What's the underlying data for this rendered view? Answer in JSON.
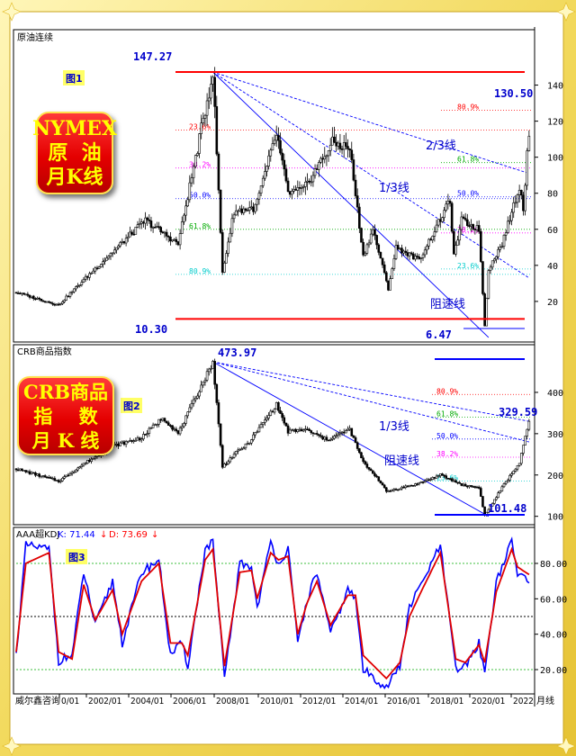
{
  "panels": {
    "top": {
      "title": "原油连续",
      "badge_lines": [
        "NYMEX",
        "原  油",
        "月K线"
      ],
      "figure_label": "图1",
      "annotations": {
        "peak": "147.27",
        "high_recent": "130.50",
        "low_left": "10.30",
        "low_recent": "6.47",
        "two_thirds": "2/3线",
        "one_third": "1/3线",
        "speed_line": "阻速线"
      },
      "fib_left": [
        "23.6%",
        "38.2%",
        "50.0%",
        "61.8%",
        "80.9%"
      ],
      "fib_right": [
        "80.9%",
        "61.8%",
        "50.0%",
        "38.2%",
        "23.6%"
      ],
      "y_ticks": [
        "140",
        "120",
        "100",
        "80",
        "60",
        "40",
        "20"
      ]
    },
    "middle": {
      "title": "CRB商品指数",
      "badge_lines": [
        "CRB商品",
        "指    数",
        "月 K 线"
      ],
      "figure_label": "图2",
      "annotations": {
        "peak": "473.97",
        "high_recent": "329.59",
        "low_recent": "101.48",
        "one_third": "1/3线",
        "speed_line": "阻速线"
      },
      "fib_right": [
        "80.9%",
        "61.8%",
        "50.0%",
        "38.2%",
        "23.6%"
      ],
      "y_ticks": [
        "400",
        "300",
        "200",
        "100"
      ]
    },
    "bottom": {
      "title": "AAA超KDJ",
      "k_label": "K: 71.44",
      "d_label": "D: 73.69",
      "figure_label": "图3",
      "y_ticks": [
        "80.00",
        "60.00",
        "40.00",
        "20.00"
      ]
    }
  },
  "x_axis": {
    "labels": [
      "0/01",
      "2002/01",
      "2004/01",
      "2006/01",
      "2008/01",
      "2010/01",
      "2012/01",
      "2014/01",
      "2016/01",
      "2018/01",
      "2020/01",
      "2022"
    ],
    "source": "威尔鑫咨询",
    "unit": "月线"
  },
  "colors": {
    "frame": "#f2d95c",
    "badge": "#e40000",
    "badge_text": "#ffff00",
    "label_blue": "#0000cc",
    "k_line": "#0000ff",
    "d_line": "#e00000",
    "level_red": "#ff0000",
    "level_blue": "#0000ff"
  },
  "chart_data": [
    {
      "type": "candlestick",
      "title": "原油连续",
      "frequency": "monthly",
      "x_range": [
        "2000-01",
        "2022-03"
      ],
      "ylim": [
        0,
        150
      ],
      "y_scale": "linear",
      "series": [
        {
          "name": "close",
          "x": [
            "2000-01",
            "2001-11",
            "2003-01",
            "2005-08",
            "2007-01",
            "2008-07",
            "2008-12",
            "2009-06",
            "2010-05",
            "2011-04",
            "2011-10",
            "2012-06",
            "2013-09",
            "2014-06",
            "2015-01",
            "2015-06",
            "2016-02",
            "2016-06",
            "2017-06",
            "2018-10",
            "2018-12",
            "2019-04",
            "2020-01",
            "2020-04",
            "2020-06",
            "2021-01",
            "2021-10",
            "2021-12",
            "2022-03"
          ],
          "values": [
            25,
            18,
            33,
            65,
            52,
            147.27,
            36,
            70,
            72,
            113,
            80,
            82,
            108,
            105,
            45,
            60,
            27,
            50,
            43,
            76,
            45,
            65,
            60,
            6.47,
            38,
            52,
            84,
            72,
            115
          ]
        }
      ],
      "annotations": [
        {
          "text": "147.27",
          "x": "2008-07",
          "y": 147.27
        },
        {
          "text": "130.50",
          "x": "2022-03",
          "y": 130.5
        },
        {
          "text": "10.30",
          "y": 10.3
        },
        {
          "text": "6.47",
          "x": "2020-04",
          "y": 6.47
        }
      ],
      "horizontal_levels": [
        147.27,
        10.3,
        6.47
      ],
      "fib_levels": [
        {
          "label": "23.6%",
          "y": 115
        },
        {
          "label": "38.2%",
          "y": 94
        },
        {
          "label": "50.0%",
          "y": 77
        },
        {
          "label": "61.8%",
          "y": 60
        },
        {
          "label": "80.9%",
          "y": 35
        }
      ],
      "fib_levels_right": [
        {
          "label": "80.9%",
          "y": 126
        },
        {
          "label": "61.8%",
          "y": 97
        },
        {
          "label": "50.0%",
          "y": 78
        },
        {
          "label": "38.2%",
          "y": 58
        },
        {
          "label": "23.6%",
          "y": 38
        }
      ],
      "trend_lines": [
        {
          "label": "2/3线",
          "from": [
            "2008-07",
            147.27
          ],
          "to": [
            "2022-03",
            91
          ]
        },
        {
          "label": "1/3线",
          "from": [
            "2008-07",
            147.27
          ],
          "to": [
            "2022-03",
            33
          ]
        },
        {
          "label": "阻速线",
          "from": [
            "2008-07",
            147.27
          ],
          "to": [
            "2020-06",
            0
          ]
        }
      ]
    },
    {
      "type": "candlestick",
      "title": "CRB商品指数",
      "frequency": "monthly",
      "x_range": [
        "2000-01",
        "2022-03"
      ],
      "ylim": [
        70,
        490
      ],
      "y_scale": "linear",
      "series": [
        {
          "name": "close",
          "x": [
            "2000-01",
            "2001-11",
            "2003-01",
            "2004-03",
            "2005-06",
            "2006-05",
            "2007-01",
            "2008-07",
            "2008-12",
            "2009-06",
            "2010-01",
            "2011-04",
            "2011-10",
            "2012-07",
            "2013-06",
            "2014-06",
            "2015-01",
            "2015-08",
            "2016-01",
            "2017-06",
            "2018-05",
            "2019-05",
            "2020-01",
            "2020-04",
            "2021-01",
            "2021-10",
            "2022-03"
          ],
          "values": [
            215,
            185,
            230,
            270,
            290,
            340,
            300,
            473.97,
            220,
            250,
            275,
            370,
            305,
            310,
            285,
            310,
            230,
            195,
            160,
            180,
            200,
            175,
            170,
            101.48,
            170,
            230,
            329.59
          ]
        }
      ],
      "annotations": [
        {
          "text": "473.97",
          "x": "2008-07",
          "y": 473.97
        },
        {
          "text": "329.59",
          "x": "2022-03",
          "y": 329.59
        },
        {
          "text": "101.48",
          "x": "2020-04",
          "y": 101.48
        }
      ],
      "horizontal_levels": [
        473.97,
        101.48
      ],
      "fib_levels_right": [
        {
          "label": "80.9%",
          "y": 395
        },
        {
          "label": "61.8%",
          "y": 340
        },
        {
          "label": "50.0%",
          "y": 287
        },
        {
          "label": "38.2%",
          "y": 243
        },
        {
          "label": "23.6%",
          "y": 185
        }
      ],
      "trend_lines": [
        {
          "label": "1/3线",
          "from": [
            "2008-07",
            473.97
          ],
          "to": [
            "2022-03",
            280
          ]
        },
        {
          "label": "阻速线",
          "from": [
            "2008-07",
            473.97
          ],
          "to": [
            "2020-06",
            100
          ]
        },
        {
          "from": [
            "2008-07",
            473.97
          ],
          "to": [
            "2022-03",
            330
          ]
        }
      ]
    },
    {
      "type": "line",
      "title": "AAA超KDJ",
      "frequency": "monthly",
      "x_range": [
        "2000-01",
        "2022-03"
      ],
      "ylim": [
        10,
        95
      ],
      "reference_lines": [
        20,
        50,
        80
      ],
      "series": [
        {
          "name": "K",
          "x": [
            "2000-01",
            "2000-06",
            "2001-06",
            "2001-11",
            "2002-06",
            "2002-12",
            "2003-06",
            "2004-03",
            "2004-08",
            "2005-06",
            "2006-03",
            "2006-09",
            "2007-03",
            "2007-06",
            "2008-03",
            "2008-07",
            "2009-01",
            "2009-09",
            "2010-03",
            "2010-06",
            "2011-01",
            "2011-05",
            "2011-10",
            "2012-03",
            "2012-08",
            "2013-01",
            "2013-08",
            "2014-05",
            "2014-09",
            "2015-01",
            "2016-01",
            "2016-08",
            "2017-01",
            "2017-07",
            "2018-05",
            "2019-01",
            "2019-06",
            "2020-01",
            "2020-04",
            "2020-10",
            "2021-06",
            "2021-09",
            "2022-03"
          ],
          "values": [
            28,
            90,
            88,
            25,
            28,
            75,
            45,
            70,
            35,
            75,
            82,
            28,
            35,
            22,
            88,
            92,
            15,
            80,
            78,
            55,
            92,
            80,
            88,
            35,
            60,
            75,
            40,
            65,
            60,
            20,
            10,
            22,
            55,
            68,
            90,
            20,
            22,
            35,
            18,
            70,
            92,
            74,
            71.44
          ]
        },
        {
          "name": "D",
          "x": [
            "2000-01",
            "2000-06",
            "2001-06",
            "2001-11",
            "2002-06",
            "2002-12",
            "2003-06",
            "2004-03",
            "2004-08",
            "2005-06",
            "2006-03",
            "2006-09",
            "2007-03",
            "2007-06",
            "2008-03",
            "2008-07",
            "2009-01",
            "2009-09",
            "2010-03",
            "2010-06",
            "2011-01",
            "2011-05",
            "2011-10",
            "2012-03",
            "2012-08",
            "2013-01",
            "2013-08",
            "2014-05",
            "2014-09",
            "2015-01",
            "2016-01",
            "2016-08",
            "2017-01",
            "2017-07",
            "2018-05",
            "2019-01",
            "2019-06",
            "2020-01",
            "2020-04",
            "2020-10",
            "2021-06",
            "2021-09",
            "2022-03"
          ],
          "values": [
            30,
            80,
            86,
            30,
            26,
            68,
            48,
            65,
            40,
            70,
            80,
            35,
            35,
            28,
            82,
            88,
            22,
            75,
            76,
            60,
            86,
            82,
            84,
            40,
            58,
            70,
            45,
            62,
            62,
            28,
            15,
            24,
            50,
            64,
            86,
            26,
            24,
            34,
            24,
            64,
            88,
            78,
            73.69
          ]
        }
      ]
    }
  ]
}
